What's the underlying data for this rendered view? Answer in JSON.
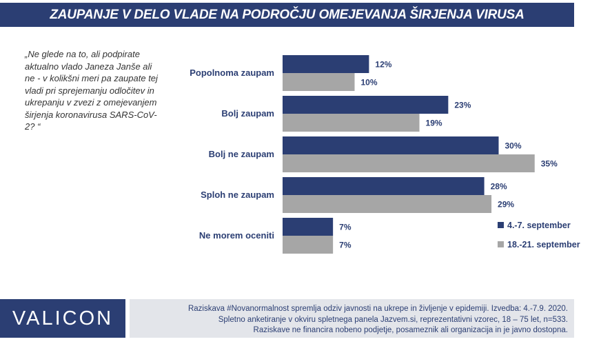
{
  "title": "ZAUPANJE V DELO VLADE NA PODROČJU OMEJEVANJA ŠIRJENJA VIRUSA",
  "question": "„Ne glede na to, ali podpirate aktualno vlado Janeza Janše ali ne - v kolikšni meri pa zaupate tej vladi pri sprejemanju odločitev in ukrepanju v zvezi z omejevanjem širjenja koronavirusa SARS-CoV-2? “",
  "chart_data": {
    "type": "bar",
    "orientation": "horizontal",
    "categories": [
      "Popolnoma zaupam",
      "Bolj zaupam",
      "Bolj ne zaupam",
      "Sploh ne zaupam",
      "Ne morem oceniti"
    ],
    "series": [
      {
        "name": "4.-7. september",
        "values": [
          12,
          23,
          30,
          28,
          7
        ],
        "color": "#2b3e73"
      },
      {
        "name": "18.-21. september",
        "values": [
          10,
          19,
          35,
          29,
          7
        ],
        "color": "#a6a6a6"
      }
    ],
    "value_suffix": "%",
    "legend_position": "bottom-right",
    "grid": false
  },
  "logo": "VALICON",
  "footer": {
    "line1": "Raziskava #Novanormalnost spremlja odziv javnosti na ukrepe in življenje v epidemiji. Izvedba: 4.-7.9. 2020.",
    "line2": "Spletno anketiranje v okviru spletnega panela Jazvem.si, reprezentativni vzorec, 18 – 75 let, n=533.",
    "line3": "Raziskave ne financira nobeno podjetje, posameznik ali organizacija in je javno dostopna."
  }
}
